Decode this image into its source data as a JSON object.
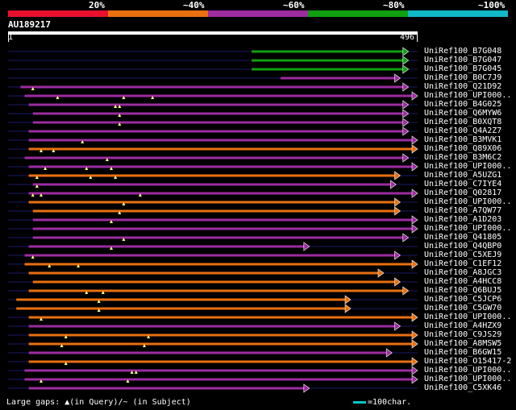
{
  "query": {
    "id": "AU189217",
    "start": "1",
    "end": "496",
    "length": 496
  },
  "identity_scale": [
    {
      "label": "20%",
      "color": "#e8102e"
    },
    {
      "label": "~40%",
      "color": "#e87010"
    },
    {
      "label": "~60%",
      "color": "#9c2ca0"
    },
    {
      "label": "~80%",
      "color": "#10a010"
    },
    {
      "label": "~100%",
      "color": "#10b8c8"
    }
  ],
  "hits": [
    {
      "name": "UniRef100_B7G048",
      "color": "#10a010",
      "start": 295,
      "end": 485,
      "gaps": []
    },
    {
      "name": "UniRef100_B7G047",
      "color": "#10a010",
      "start": 295,
      "end": 485,
      "gaps": []
    },
    {
      "name": "UniRef100_B7G045",
      "color": "#10a010",
      "start": 295,
      "end": 485,
      "gaps": []
    },
    {
      "name": "UniRef100_B0C7J9",
      "color": "#9c2ca0",
      "start": 330,
      "end": 475,
      "gaps": []
    },
    {
      "name": "UniRef100_Q21D92",
      "color": "#9c2ca0",
      "start": 15,
      "end": 485,
      "gaps": [
        30
      ]
    },
    {
      "name": "UniRef100_UPI000..",
      "color": "#9c2ca0",
      "start": 20,
      "end": 496,
      "gaps": [
        60,
        140,
        175
      ]
    },
    {
      "name": "UniRef100_B4G025",
      "color": "#9c2ca0",
      "start": 25,
      "end": 485,
      "gaps": [
        130,
        135
      ]
    },
    {
      "name": "UniRef100_Q6MYW6",
      "color": "#9c2ca0",
      "start": 30,
      "end": 485,
      "gaps": [
        135
      ]
    },
    {
      "name": "UniRef100_B0XQT8",
      "color": "#9c2ca0",
      "start": 30,
      "end": 485,
      "gaps": [
        135
      ]
    },
    {
      "name": "UniRef100_Q4A2Z7",
      "color": "#9c2ca0",
      "start": 25,
      "end": 485,
      "gaps": []
    },
    {
      "name": "UniRef100_B3MVK1",
      "color": "#9c2ca0",
      "start": 25,
      "end": 496,
      "gaps": [
        90
      ]
    },
    {
      "name": "UniRef100_Q89X06",
      "color": "#e87010",
      "start": 25,
      "end": 496,
      "gaps": [
        40,
        55
      ]
    },
    {
      "name": "UniRef100_B3M6C2",
      "color": "#9c2ca0",
      "start": 20,
      "end": 485,
      "gaps": [
        120
      ]
    },
    {
      "name": "UniRef100_UPI000..",
      "color": "#9c2ca0",
      "start": 25,
      "end": 496,
      "gaps": [
        45,
        95,
        125
      ]
    },
    {
      "name": "UniRef100_A5UZG1",
      "color": "#e87010",
      "start": 25,
      "end": 475,
      "gaps": [
        35,
        100,
        130
      ]
    },
    {
      "name": "UniRef100_C7IYE4",
      "color": "#9c2ca0",
      "start": 30,
      "end": 470,
      "gaps": [
        35
      ]
    },
    {
      "name": "UniRef100_Q02817",
      "color": "#9c2ca0",
      "start": 25,
      "end": 505,
      "gaps": [
        30,
        40,
        160
      ]
    },
    {
      "name": "UniRef100_UPI000..",
      "color": "#e87010",
      "start": 25,
      "end": 475,
      "gaps": [
        140
      ]
    },
    {
      "name": "UniRef100_A7QW77",
      "color": "#e87010",
      "start": 30,
      "end": 475,
      "gaps": [
        135
      ]
    },
    {
      "name": "UniRef100_A1D203",
      "color": "#9c2ca0",
      "start": 30,
      "end": 496,
      "gaps": [
        125
      ]
    },
    {
      "name": "UniRef100_UPI000..",
      "color": "#9c2ca0",
      "start": 30,
      "end": 496,
      "gaps": []
    },
    {
      "name": "UniRef100_Q41805",
      "color": "#9c2ca0",
      "start": 30,
      "end": 485,
      "gaps": [
        140
      ]
    },
    {
      "name": "UniRef100_Q4QBP0",
      "color": "#9c2ca0",
      "start": 25,
      "end": 365,
      "gaps": [
        125
      ]
    },
    {
      "name": "UniRef100_C5XEJ9",
      "color": "#9c2ca0",
      "start": 20,
      "end": 475,
      "gaps": [
        30
      ]
    },
    {
      "name": "UniRef100_C1EF12",
      "color": "#e87010",
      "start": 20,
      "end": 496,
      "gaps": [
        50,
        85
      ]
    },
    {
      "name": "UniRef100_A8JGC3",
      "color": "#e87010",
      "start": 25,
      "end": 455,
      "gaps": []
    },
    {
      "name": "UniRef100_A4HCC8",
      "color": "#e87010",
      "start": 30,
      "end": 475,
      "gaps": []
    },
    {
      "name": "UniRef100_Q6BUJ5",
      "color": "#e87010",
      "start": 25,
      "end": 485,
      "gaps": [
        95,
        115
      ]
    },
    {
      "name": "UniRef100_C5JCP6",
      "color": "#e87010",
      "start": 10,
      "end": 415,
      "gaps": [
        110
      ]
    },
    {
      "name": "UniRef100_C5GW70",
      "color": "#e87010",
      "start": 10,
      "end": 415,
      "gaps": [
        110
      ]
    },
    {
      "name": "UniRef100_UPI000..",
      "color": "#e87010",
      "start": 25,
      "end": 505,
      "gaps": [
        40
      ]
    },
    {
      "name": "UniRef100_A4HZX9",
      "color": "#9c2ca0",
      "start": 25,
      "end": 475,
      "gaps": []
    },
    {
      "name": "UniRef100_C9JS29",
      "color": "#e87010",
      "start": 25,
      "end": 496,
      "gaps": [
        70,
        170
      ]
    },
    {
      "name": "UniRef100_A8MSW5",
      "color": "#e87010",
      "start": 25,
      "end": 496,
      "gaps": [
        65,
        165
      ]
    },
    {
      "name": "UniRef100_B6GW15",
      "color": "#9c2ca0",
      "start": 25,
      "end": 465,
      "gaps": []
    },
    {
      "name": "UniRef100_O15417-2",
      "color": "#e87010",
      "start": 25,
      "end": 496,
      "gaps": [
        70
      ]
    },
    {
      "name": "UniRef100_UPI000..",
      "color": "#9c2ca0",
      "start": 20,
      "end": 496,
      "gaps": [
        150,
        155
      ]
    },
    {
      "name": "UniRef100_UPI000..",
      "color": "#9c2ca0",
      "start": 20,
      "end": 496,
      "gaps": [
        40,
        145
      ]
    },
    {
      "name": "UniRef100_C5XK46",
      "color": "#9c2ca0",
      "start": 25,
      "end": 365,
      "gaps": []
    }
  ],
  "footer": {
    "text": "Large gaps: ▲(in Query)/~ (in Subject)",
    "legend_text": "=100char."
  }
}
